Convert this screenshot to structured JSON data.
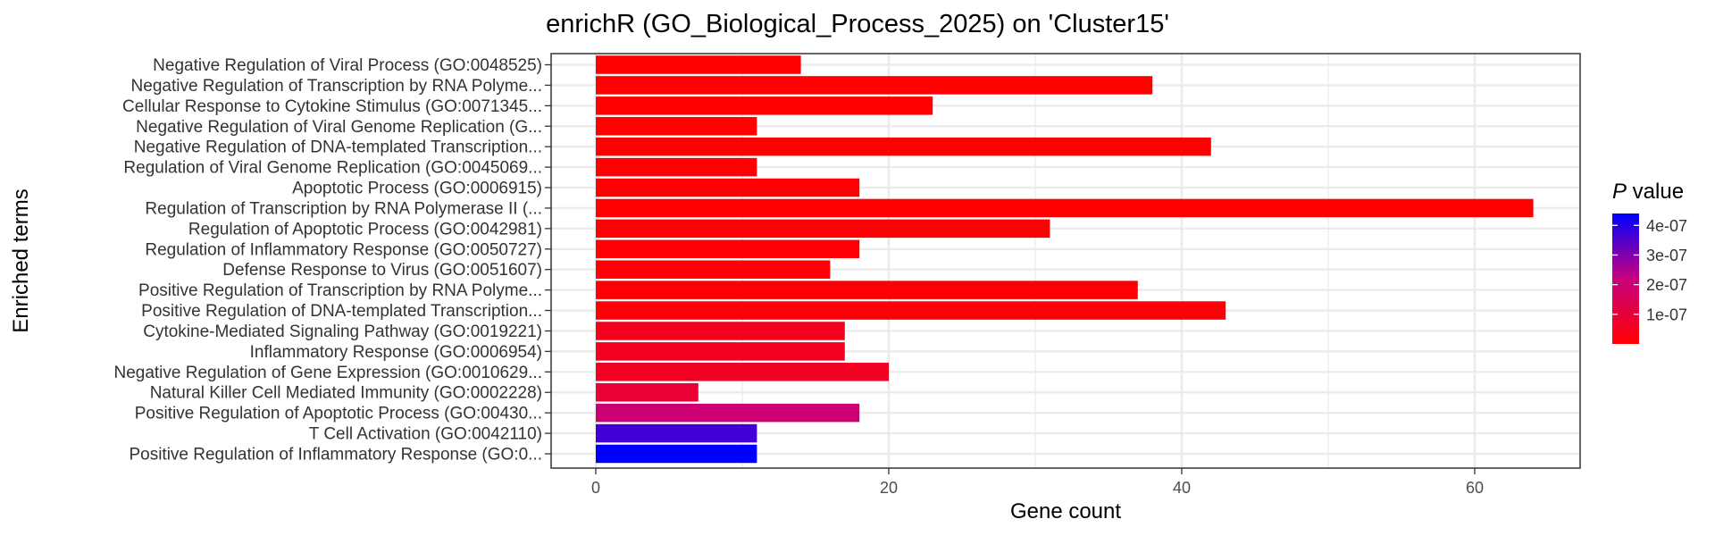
{
  "chart_data": {
    "type": "bar",
    "orientation": "horizontal",
    "title": "enrichR (GO_Biological_Process_2025) on 'Cluster15'",
    "xlabel": "Gene count",
    "ylabel": "Enriched terms",
    "xlim": [
      0,
      67
    ],
    "xticks": [
      0,
      20,
      40,
      60
    ],
    "grid": true,
    "legend": {
      "title_italic": "P",
      "title_rest": " value",
      "position": "right",
      "range": [
        0,
        4.4e-07
      ],
      "ticks": [
        {
          "value": 1e-07,
          "label": "1e-07"
        },
        {
          "value": 2e-07,
          "label": "2e-07"
        },
        {
          "value": 3e-07,
          "label": "3e-07"
        },
        {
          "value": 4e-07,
          "label": "4e-07"
        }
      ],
      "low_color": "#ff0000",
      "high_color": "#0000ff"
    },
    "categories": [
      "Negative Regulation of Viral Process (GO:0048525)",
      "Negative Regulation of Transcription by RNA Polyme...",
      "Cellular Response to Cytokine Stimulus (GO:0071345...",
      "Negative Regulation of Viral Genome Replication (G...",
      "Negative Regulation of DNA-templated Transcription...",
      "Regulation of Viral Genome Replication (GO:0045069...",
      "Apoptotic Process (GO:0006915)",
      "Regulation of Transcription by RNA Polymerase II (...",
      "Regulation of Apoptotic Process (GO:0042981)",
      "Regulation of Inflammatory Response (GO:0050727)",
      "Defense Response to Virus (GO:0051607)",
      "Positive Regulation of Transcription by RNA Polyme...",
      "Positive Regulation of DNA-templated Transcription...",
      "Cytokine-Mediated Signaling Pathway (GO:0019221)",
      "Inflammatory Response (GO:0006954)",
      "Negative Regulation of Gene Expression (GO:0010629...",
      "Natural Killer Cell Mediated Immunity (GO:0002228)",
      "Positive Regulation of Apoptotic Process (GO:00430...",
      "T Cell Activation (GO:0042110)",
      "Positive Regulation of Inflammatory Response (GO:0..."
    ],
    "values": [
      14,
      38,
      23,
      11,
      42,
      11,
      18,
      64,
      31,
      18,
      16,
      37,
      43,
      17,
      17,
      20,
      7,
      18,
      11,
      11
    ],
    "p_values": [
      1e-09,
      1e-09,
      2e-09,
      2e-09,
      2e-09,
      3e-09,
      3e-09,
      4e-09,
      5e-09,
      6e-09,
      8e-09,
      1e-08,
      1.3e-08,
      5e-08,
      5.5e-08,
      6e-08,
      9e-08,
      2e-07,
      3.7e-07,
      4.4e-07
    ]
  }
}
